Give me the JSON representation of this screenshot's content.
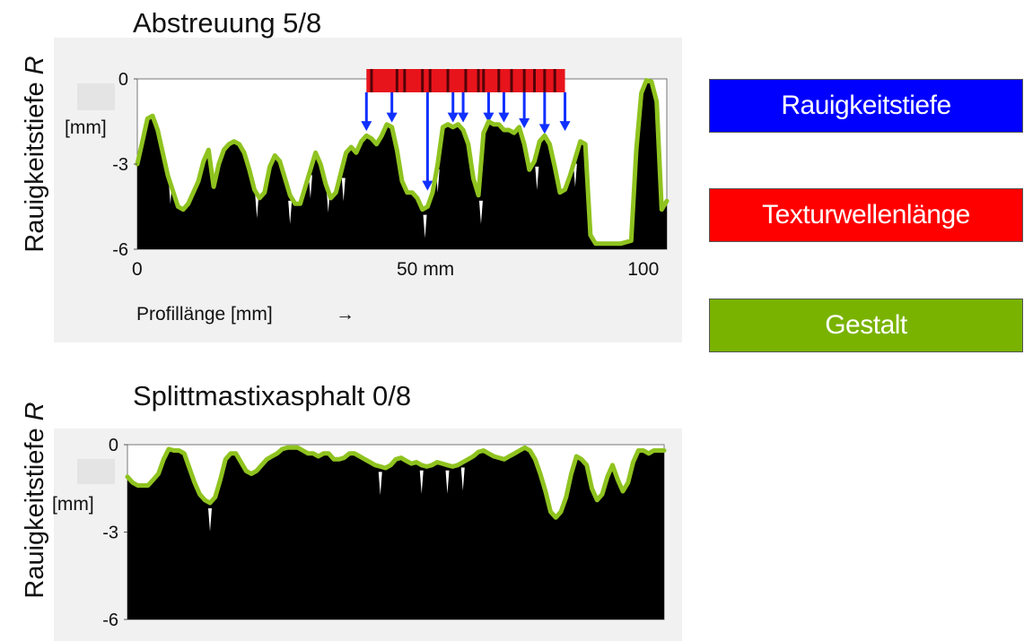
{
  "chart_data": [
    {
      "type": "area",
      "title": "Abstreuung 5/8",
      "ylabel_main": "Rauigkeitstiefe ",
      "ylabel_var": "R",
      "yunit": "[mm]",
      "xlabel": "Profillänge [mm]",
      "xlabel_arrow": "→",
      "xlim": [
        0,
        104
      ],
      "ylim": [
        -6,
        0
      ],
      "yticks": [
        {
          "value": 0,
          "label": "0"
        },
        {
          "value": -3,
          "label": "-3"
        },
        {
          "value": -6,
          "label": "-6"
        }
      ],
      "xticks": [
        {
          "value": 0,
          "label": "0"
        },
        {
          "value": 52,
          "label": "50 mm"
        },
        {
          "value": 100,
          "label": "100"
        }
      ],
      "series": [
        {
          "role": "surface-profile",
          "x": [
            0,
            1,
            2,
            3,
            4,
            5,
            6,
            7,
            8,
            9,
            10,
            11,
            12,
            13,
            14,
            15,
            16,
            17,
            18,
            19,
            20,
            21,
            22,
            23,
            24,
            25,
            26,
            27,
            28,
            29,
            30,
            31,
            32,
            33,
            34,
            35,
            36,
            37,
            38,
            39,
            40,
            41,
            42,
            43,
            44,
            45,
            46,
            47,
            48,
            49,
            50,
            51,
            52,
            53,
            54,
            55,
            56,
            57,
            58,
            59,
            60,
            61,
            62,
            63,
            64,
            65,
            66,
            67,
            68,
            69,
            70,
            71,
            72,
            73,
            74,
            75,
            76,
            77,
            78,
            79,
            80,
            81,
            82,
            83,
            84,
            85,
            86,
            87,
            88,
            89,
            90,
            91,
            92,
            93,
            94,
            95,
            96,
            97,
            98,
            99,
            100,
            101,
            102,
            103,
            104
          ],
          "y": [
            -3.0,
            -2.2,
            -1.4,
            -1.3,
            -1.8,
            -2.6,
            -3.4,
            -4.0,
            -4.5,
            -4.6,
            -4.4,
            -4.1,
            -3.6,
            -2.9,
            -2.5,
            -3.8,
            -3.0,
            -2.5,
            -2.3,
            -2.2,
            -2.3,
            -2.6,
            -3.2,
            -3.9,
            -4.2,
            -4.0,
            -3.1,
            -2.7,
            -2.9,
            -3.5,
            -4.1,
            -4.4,
            -4.4,
            -3.8,
            -3.2,
            -2.6,
            -3.0,
            -3.7,
            -4.2,
            -4.0,
            -3.3,
            -2.6,
            -2.4,
            -2.6,
            -2.2,
            -2.0,
            -2.1,
            -2.3,
            -2.0,
            -1.6,
            -1.7,
            -2.5,
            -3.6,
            -4.0,
            -4.0,
            -4.2,
            -4.6,
            -4.5,
            -4.0,
            -3.0,
            -1.7,
            -1.6,
            -1.7,
            -1.6,
            -1.8,
            -2.3,
            -3.5,
            -4.1,
            -1.9,
            -1.5,
            -1.6,
            -1.6,
            -1.8,
            -1.8,
            -1.9,
            -1.7,
            -2.3,
            -3.2,
            -2.9,
            -2.2,
            -2.0,
            -2.3,
            -3.1,
            -4.0,
            -3.9,
            -3.4,
            -2.8,
            -2.2,
            -2.3,
            -5.5,
            -5.8,
            -5.8,
            -5.8,
            -5.8,
            -5.8,
            -5.8,
            -5.8,
            -5.7,
            -2.5,
            -0.5,
            -0.05,
            -0.1,
            -0.8,
            -4.6,
            -4.3
          ]
        },
        {
          "role": "gestalt-envelope",
          "x": [
            0,
            1,
            2,
            3,
            4,
            6,
            8,
            9,
            10,
            12,
            13,
            14,
            15,
            16,
            17,
            18,
            19,
            20,
            21,
            22,
            23,
            24,
            25,
            26,
            27,
            28,
            29,
            30,
            31,
            32,
            33,
            34,
            35,
            36,
            37,
            38,
            39,
            40,
            41,
            42,
            43,
            44,
            45,
            46,
            47,
            48,
            49,
            50,
            51,
            52,
            53,
            54,
            55,
            56,
            57,
            58,
            59,
            60,
            61,
            62,
            63,
            64,
            65,
            66,
            67,
            68,
            69,
            70,
            71,
            72,
            73,
            74,
            75,
            76,
            77,
            78,
            79,
            80,
            81,
            82,
            83,
            84,
            85,
            86,
            87,
            88,
            89,
            90,
            92,
            95,
            97,
            98,
            99,
            100,
            101,
            102,
            103,
            104
          ],
          "y": [
            -3.0,
            -2.2,
            -1.4,
            -1.3,
            -1.8,
            -3.4,
            -4.5,
            -4.6,
            -4.4,
            -3.6,
            -2.9,
            -2.5,
            -3.8,
            -3.0,
            -2.5,
            -2.3,
            -2.2,
            -2.3,
            -2.6,
            -3.2,
            -3.9,
            -4.2,
            -4.0,
            -3.1,
            -2.7,
            -2.9,
            -3.5,
            -4.1,
            -4.4,
            -4.4,
            -3.8,
            -3.2,
            -2.6,
            -3.0,
            -3.7,
            -4.2,
            -4.0,
            -3.3,
            -2.6,
            -2.4,
            -2.6,
            -2.2,
            -2.0,
            -2.1,
            -2.3,
            -2.0,
            -1.6,
            -1.7,
            -2.5,
            -3.6,
            -4.0,
            -4.0,
            -4.2,
            -4.6,
            -4.5,
            -4.0,
            -3.0,
            -1.7,
            -1.6,
            -1.7,
            -1.6,
            -1.8,
            -2.3,
            -3.5,
            -4.1,
            -1.9,
            -1.5,
            -1.6,
            -1.6,
            -1.8,
            -1.8,
            -1.9,
            -1.7,
            -2.3,
            -3.2,
            -2.9,
            -2.2,
            -2.0,
            -2.3,
            -3.1,
            -4.0,
            -3.9,
            -3.4,
            -2.8,
            -2.2,
            -2.3,
            -5.5,
            -5.8,
            -5.8,
            -5.8,
            -5.7,
            -2.5,
            -0.5,
            -0.05,
            -0.1,
            -0.8,
            -4.6,
            -4.3
          ]
        }
      ],
      "spike_x": [
        6.5,
        14.5,
        23.5,
        30,
        34,
        37.5,
        40.5,
        56.5,
        59,
        67.5,
        78.5,
        86
      ],
      "texture_band": {
        "x_start": 45,
        "x_end": 84,
        "dark_x": [
          46,
          51,
          52.5,
          56,
          57.5,
          61,
          64.5,
          67,
          68,
          71,
          73.5,
          76,
          78,
          80,
          82
        ],
        "arrow_x": [
          45,
          50,
          57,
          62,
          64,
          69,
          72,
          76,
          80,
          84
        ],
        "arrow_tip_y": [
          -1.9,
          -1.6,
          -4.0,
          -1.6,
          -1.6,
          -1.6,
          -1.6,
          -1.8,
          -2.0,
          -1.9
        ]
      }
    },
    {
      "type": "area",
      "title": "Splittmastixasphalt 0/8",
      "ylabel_main": "Rauigkeitstiefe ",
      "ylabel_var": "R",
      "yunit": "[mm]",
      "xlim": [
        0,
        104
      ],
      "ylim": [
        -6,
        0
      ],
      "yticks": [
        {
          "value": 0,
          "label": "0"
        },
        {
          "value": -3,
          "label": "-3"
        },
        {
          "value": -6,
          "label": "-6"
        }
      ],
      "series": [
        {
          "role": "surface-profile",
          "x": [
            0,
            1,
            2,
            3,
            4,
            5,
            6,
            7,
            8,
            9,
            10,
            11,
            12,
            13,
            14,
            15,
            16,
            17,
            18,
            19,
            20,
            21,
            22,
            23,
            24,
            25,
            26,
            27,
            28,
            29,
            30,
            31,
            32,
            33,
            34,
            35,
            36,
            37,
            38,
            39,
            40,
            41,
            42,
            43,
            44,
            45,
            46,
            47,
            48,
            49,
            50,
            51,
            52,
            53,
            54,
            55,
            56,
            57,
            58,
            59,
            60,
            61,
            62,
            63,
            64,
            65,
            66,
            67,
            68,
            69,
            70,
            71,
            72,
            73,
            74,
            75,
            76,
            77,
            78,
            79,
            80,
            81,
            82,
            83,
            84,
            85,
            86,
            87,
            88,
            89,
            90,
            91,
            92,
            93,
            94,
            95,
            96,
            97,
            98,
            99,
            100,
            101,
            102,
            103,
            104
          ],
          "y": [
            -1.1,
            -1.3,
            -1.4,
            -1.4,
            -1.4,
            -1.2,
            -1.0,
            -0.5,
            -0.15,
            -0.2,
            -0.2,
            -0.3,
            -0.8,
            -1.3,
            -1.7,
            -1.9,
            -2.0,
            -1.8,
            -1.2,
            -0.5,
            -0.3,
            -0.3,
            -0.6,
            -0.9,
            -1.0,
            -0.9,
            -0.7,
            -0.5,
            -0.4,
            -0.3,
            -0.15,
            -0.1,
            -0.1,
            -0.1,
            -0.2,
            -0.3,
            -0.3,
            -0.4,
            -0.3,
            -0.3,
            -0.5,
            -0.5,
            -0.45,
            -0.3,
            -0.3,
            -0.4,
            -0.5,
            -0.6,
            -0.7,
            -0.75,
            -0.8,
            -0.7,
            -0.5,
            -0.45,
            -0.55,
            -0.65,
            -0.6,
            -0.7,
            -0.75,
            -0.7,
            -0.6,
            -0.65,
            -0.7,
            -0.75,
            -0.7,
            -0.6,
            -0.5,
            -0.4,
            -0.25,
            -0.2,
            -0.3,
            -0.4,
            -0.45,
            -0.5,
            -0.4,
            -0.3,
            -0.2,
            -0.1,
            -0.2,
            -0.5,
            -1.0,
            -1.6,
            -2.3,
            -2.5,
            -2.3,
            -1.8,
            -1.0,
            -0.4,
            -0.5,
            -0.7,
            -1.5,
            -1.9,
            -1.7,
            -1.1,
            -0.7,
            -1.2,
            -1.6,
            -1.3,
            -0.6,
            -0.2,
            -0.2,
            -0.3,
            -0.2,
            -0.2,
            -0.2
          ]
        },
        {
          "role": "gestalt-envelope",
          "x": [
            0,
            1,
            2,
            3,
            4,
            5,
            6,
            7,
            8,
            9,
            10,
            11,
            12,
            13,
            14,
            15,
            16,
            17,
            18,
            19,
            20,
            21,
            22,
            23,
            24,
            25,
            26,
            27,
            28,
            29,
            30,
            31,
            32,
            33,
            34,
            35,
            36,
            37,
            38,
            39,
            40,
            41,
            42,
            43,
            44,
            45,
            46,
            47,
            48,
            49,
            50,
            51,
            52,
            53,
            54,
            55,
            56,
            57,
            58,
            59,
            60,
            61,
            62,
            63,
            64,
            65,
            66,
            67,
            68,
            69,
            70,
            71,
            72,
            73,
            74,
            75,
            76,
            77,
            78,
            79,
            80,
            81,
            82,
            83,
            84,
            85,
            86,
            87,
            88,
            89,
            90,
            91,
            92,
            93,
            94,
            95,
            96,
            97,
            98,
            99,
            100,
            101,
            102,
            103,
            104
          ],
          "y": [
            -1.1,
            -1.3,
            -1.4,
            -1.4,
            -1.4,
            -1.2,
            -1.0,
            -0.5,
            -0.15,
            -0.2,
            -0.2,
            -0.3,
            -0.8,
            -1.3,
            -1.7,
            -1.9,
            -2.0,
            -1.8,
            -1.2,
            -0.5,
            -0.3,
            -0.3,
            -0.6,
            -0.9,
            -1.0,
            -0.9,
            -0.7,
            -0.5,
            -0.4,
            -0.3,
            -0.15,
            -0.1,
            -0.1,
            -0.1,
            -0.2,
            -0.3,
            -0.3,
            -0.4,
            -0.3,
            -0.3,
            -0.5,
            -0.5,
            -0.45,
            -0.3,
            -0.3,
            -0.4,
            -0.5,
            -0.6,
            -0.7,
            -0.75,
            -0.8,
            -0.7,
            -0.5,
            -0.45,
            -0.55,
            -0.65,
            -0.6,
            -0.7,
            -0.75,
            -0.7,
            -0.6,
            -0.65,
            -0.7,
            -0.75,
            -0.7,
            -0.6,
            -0.5,
            -0.4,
            -0.25,
            -0.2,
            -0.3,
            -0.4,
            -0.45,
            -0.5,
            -0.4,
            -0.3,
            -0.2,
            -0.1,
            -0.2,
            -0.5,
            -1.0,
            -1.6,
            -2.3,
            -2.5,
            -2.3,
            -1.8,
            -1.0,
            -0.4,
            -0.5,
            -0.7,
            -1.5,
            -1.9,
            -1.7,
            -1.1,
            -0.7,
            -1.2,
            -1.6,
            -1.3,
            -0.6,
            -0.2,
            -0.2,
            -0.3,
            -0.2,
            -0.2,
            -0.2
          ]
        }
      ],
      "spike_x": [
        16,
        49,
        57,
        62,
        65
      ]
    }
  ],
  "legend": {
    "items": [
      {
        "key": "rauigkeitstiefe",
        "label": "Rauigkeitstiefe",
        "color": "#0000ff"
      },
      {
        "key": "texturwellenlaenge",
        "label": "Texturwellenlänge",
        "color": "#ff0000"
      },
      {
        "key": "gestalt",
        "label": "Gestalt",
        "color": "#79b300"
      }
    ]
  },
  "colors": {
    "profile_fill": "#000000",
    "envelope": "#8fc31f",
    "arrow": "#1030ff",
    "panel_bg": "#f1f1f1",
    "band_red": "#e8141c",
    "band_dark": "#3a0004",
    "label_patch": "#e4e4e4"
  }
}
